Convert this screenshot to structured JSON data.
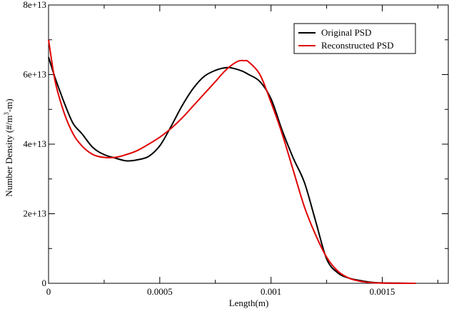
{
  "chart_data": {
    "type": "line",
    "title": "",
    "xlabel": "Length(m)",
    "ylabel_main": "Number Density (#/m",
    "ylabel_sup": "3",
    "ylabel_tail": "-m)",
    "xlim": [
      0,
      0.0018
    ],
    "ylim": [
      0,
      80000000000000.0
    ],
    "x_ticks": [
      {
        "value": 0,
        "label": "0"
      },
      {
        "value": 0.0005,
        "label": "0.0005"
      },
      {
        "value": 0.001,
        "label": "0.001"
      },
      {
        "value": 0.0015,
        "label": "0.0015"
      }
    ],
    "y_ticks": [
      {
        "value": 0,
        "label": "0"
      },
      {
        "value": 20000000000000.0,
        "label": "2e+13"
      },
      {
        "value": 40000000000000.0,
        "label": "4e+13"
      },
      {
        "value": 60000000000000.0,
        "label": "6e+13"
      },
      {
        "value": 80000000000000.0,
        "label": "8e+13"
      }
    ],
    "grid": false,
    "legend_position": "top-right",
    "series": [
      {
        "name": "Original PSD",
        "color": "#000000",
        "x": [
          0,
          3e-05,
          7e-05,
          0.00011,
          0.00015,
          0.0002,
          0.00025,
          0.0003,
          0.00035,
          0.0004,
          0.00045,
          0.0005,
          0.00055,
          0.0006,
          0.00065,
          0.0007,
          0.00075,
          0.0008,
          0.00083,
          0.00087,
          0.0009,
          0.00095,
          0.001,
          0.00105,
          0.0011,
          0.00115,
          0.0012,
          0.00125,
          0.0013,
          0.00135,
          0.0014,
          0.00145,
          0.0015,
          0.0016,
          0.00165
        ],
        "y": [
          65000000000000.0,
          59000000000000.0,
          52000000000000.0,
          46000000000000.0,
          43000000000000.0,
          39000000000000.0,
          37000000000000.0,
          36000000000000.0,
          35200000000000.0,
          35500000000000.0,
          36500000000000.0,
          39500000000000.0,
          45000000000000.0,
          51000000000000.0,
          56000000000000.0,
          59500000000000.0,
          61200000000000.0,
          62000000000000.0,
          61800000000000.0,
          61000000000000.0,
          60000000000000.0,
          58000000000000.0,
          53000000000000.0,
          44000000000000.0,
          36000000000000.0,
          29000000000000.0,
          18000000000000.0,
          7000000000000.0,
          3000000000000.0,
          1500000000000.0,
          800000000000.0,
          300000000000.0,
          100000000000.0,
          20000000000.0,
          0
        ]
      },
      {
        "name": "Reconstructed PSD",
        "color": "#e00000",
        "x": [
          0,
          3e-05,
          7e-05,
          0.00011,
          0.00015,
          0.0002,
          0.00025,
          0.0003,
          0.00035,
          0.0004,
          0.00045,
          0.0005,
          0.00055,
          0.0006,
          0.00065,
          0.0007,
          0.00075,
          0.0008,
          0.00085,
          0.00088,
          0.0009,
          0.00095,
          0.001,
          0.00105,
          0.0011,
          0.00115,
          0.0012,
          0.00125,
          0.0013,
          0.00135,
          0.0014,
          0.00145,
          0.0015,
          0.0016,
          0.00165
        ],
        "y": [
          70000000000000.0,
          58000000000000.0,
          49000000000000.0,
          43000000000000.0,
          39500000000000.0,
          37000000000000.0,
          36200000000000.0,
          36200000000000.0,
          37000000000000.0,
          38200000000000.0,
          40000000000000.0,
          42000000000000.0,
          44500000000000.0,
          47500000000000.0,
          51000000000000.0,
          54500000000000.0,
          58000000000000.0,
          61500000000000.0,
          63800000000000.0,
          64000000000000.0,
          63600000000000.0,
          60000000000000.0,
          52000000000000.0,
          43000000000000.0,
          32500000000000.0,
          22000000000000.0,
          14000000000000.0,
          7500000000000.0,
          3500000000000.0,
          1500000000000.0,
          600000000000.0,
          200000000000.0,
          50000000000.0,
          10000000000.0,
          0
        ]
      }
    ]
  }
}
